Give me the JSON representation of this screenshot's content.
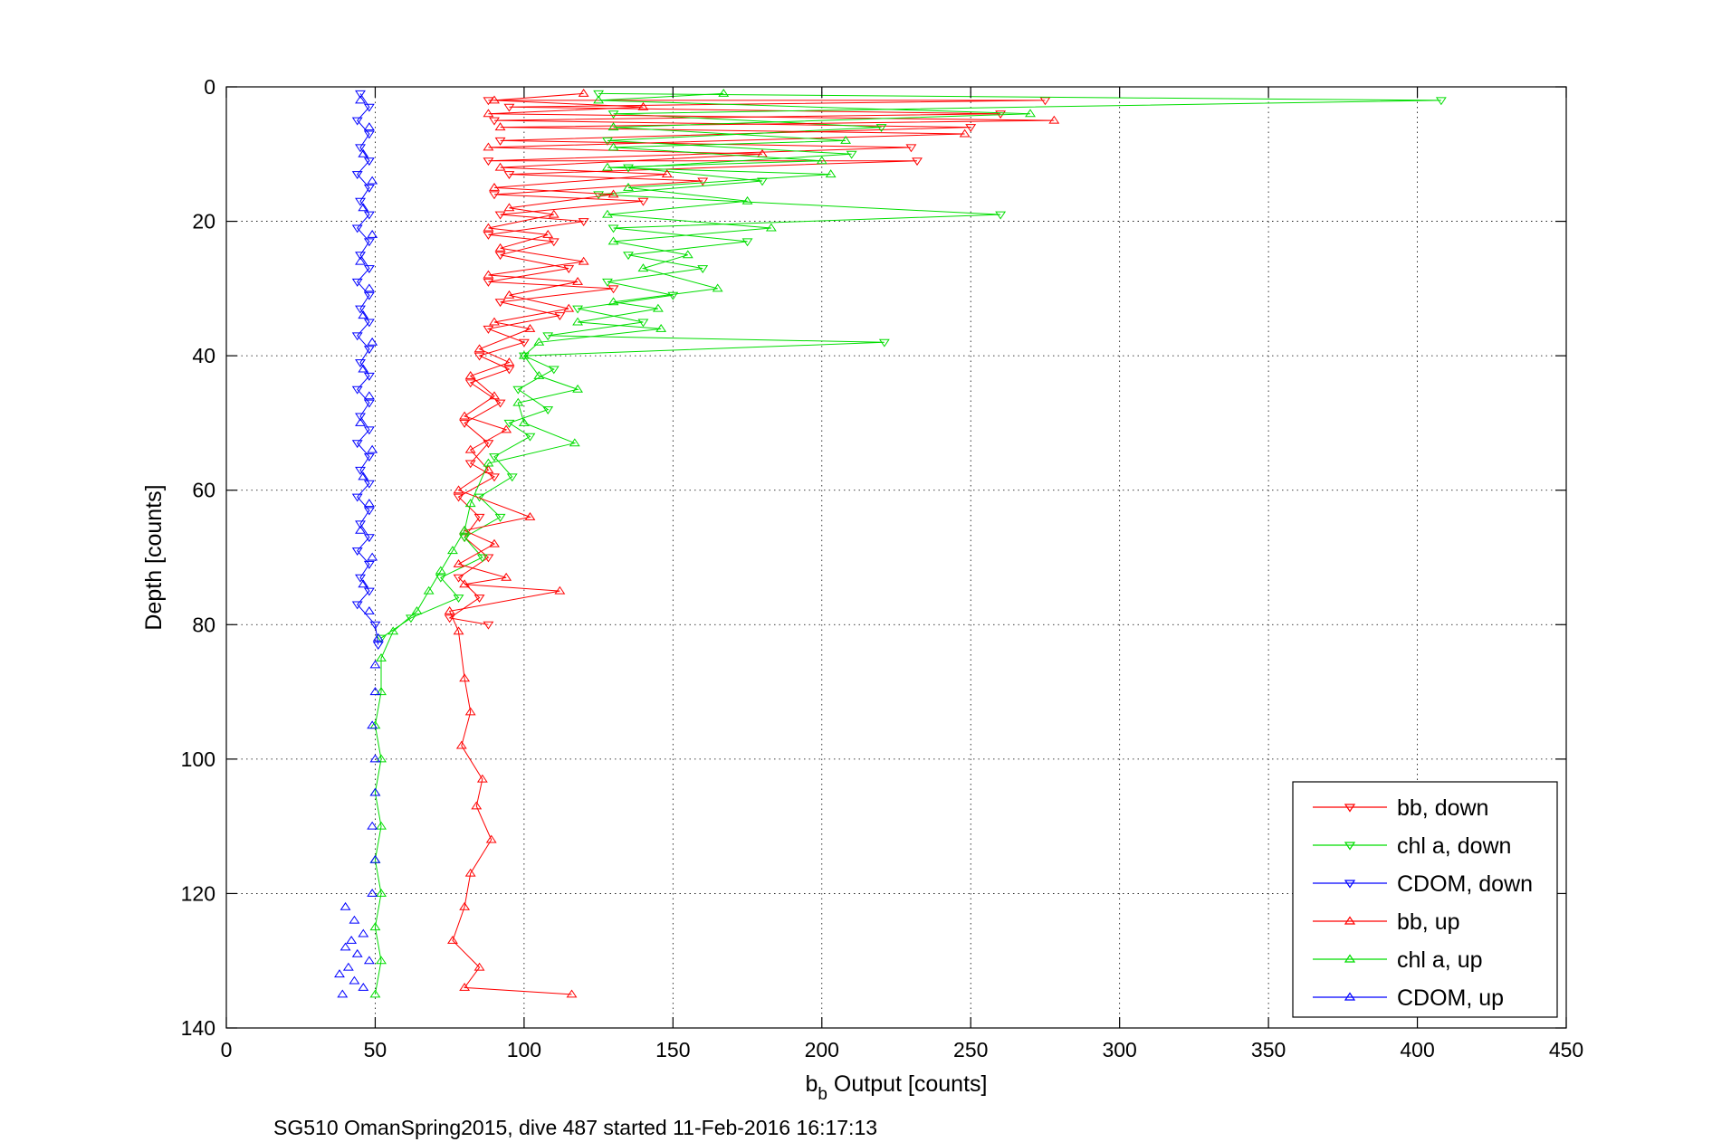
{
  "chart_data": {
    "type": "scatter",
    "title": "",
    "xlabel_main": "b",
    "xlabel_sub": "b",
    "xlabel_rest": " Output [counts]",
    "ylabel": "Depth [counts]",
    "footer": "SG510 OmanSpring2015, dive 487 started 11-Feb-2016 16:17:13",
    "xlim": [
      0,
      450
    ],
    "ylim": [
      0,
      140
    ],
    "y_reversed": true,
    "x_ticks": [
      0,
      50,
      100,
      150,
      200,
      250,
      300,
      350,
      400,
      450
    ],
    "y_ticks": [
      0,
      20,
      40,
      60,
      80,
      100,
      120,
      140
    ],
    "grid": true,
    "legend_position": "lower-right",
    "series": [
      {
        "name": "bb, down",
        "color": "#ff0000",
        "marker": "triangle-down",
        "line": true,
        "points": [
          [
            88,
            2
          ],
          [
            275,
            2
          ],
          [
            95,
            3
          ],
          [
            260,
            4
          ],
          [
            90,
            5
          ],
          [
            250,
            6
          ],
          [
            92,
            8
          ],
          [
            230,
            9
          ],
          [
            88,
            11
          ],
          [
            232,
            11
          ],
          [
            95,
            13
          ],
          [
            160,
            14
          ],
          [
            90,
            16
          ],
          [
            140,
            17
          ],
          [
            92,
            19
          ],
          [
            120,
            20
          ],
          [
            88,
            22
          ],
          [
            110,
            23
          ],
          [
            92,
            25
          ],
          [
            115,
            27
          ],
          [
            88,
            29
          ],
          [
            130,
            30
          ],
          [
            92,
            32
          ],
          [
            112,
            34
          ],
          [
            88,
            36
          ],
          [
            100,
            38
          ],
          [
            85,
            40
          ],
          [
            95,
            42
          ],
          [
            82,
            44
          ],
          [
            92,
            47
          ],
          [
            80,
            50
          ],
          [
            88,
            53
          ],
          [
            82,
            56
          ],
          [
            90,
            58
          ],
          [
            78,
            61
          ],
          [
            85,
            64
          ],
          [
            80,
            67
          ],
          [
            88,
            70
          ],
          [
            78,
            73
          ],
          [
            85,
            76
          ],
          [
            75,
            79
          ],
          [
            88,
            80
          ]
        ]
      },
      {
        "name": "chl a, down",
        "color": "#00dd00",
        "marker": "triangle-down",
        "line": true,
        "points": [
          [
            125,
            1
          ],
          [
            408,
            2
          ],
          [
            130,
            4
          ],
          [
            220,
            6
          ],
          [
            128,
            8
          ],
          [
            210,
            10
          ],
          [
            135,
            12
          ],
          [
            180,
            14
          ],
          [
            125,
            16
          ],
          [
            260,
            19
          ],
          [
            130,
            21
          ],
          [
            175,
            23
          ],
          [
            135,
            25
          ],
          [
            160,
            27
          ],
          [
            128,
            29
          ],
          [
            150,
            31
          ],
          [
            118,
            33
          ],
          [
            140,
            35
          ],
          [
            108,
            37
          ],
          [
            221,
            38
          ],
          [
            100,
            40
          ],
          [
            110,
            42
          ],
          [
            98,
            45
          ],
          [
            108,
            48
          ],
          [
            95,
            50
          ],
          [
            102,
            52
          ],
          [
            90,
            55
          ],
          [
            96,
            58
          ],
          [
            85,
            61
          ],
          [
            92,
            64
          ],
          [
            80,
            67
          ],
          [
            86,
            70
          ],
          [
            72,
            73
          ],
          [
            78,
            76
          ],
          [
            62,
            79
          ],
          [
            52,
            82
          ]
        ]
      },
      {
        "name": "CDOM, down",
        "color": "#0000ff",
        "marker": "triangle-down",
        "line": true,
        "points": [
          [
            45,
            1
          ],
          [
            48,
            3
          ],
          [
            44,
            5
          ],
          [
            48,
            7
          ],
          [
            45,
            9
          ],
          [
            48,
            11
          ],
          [
            44,
            13
          ],
          [
            48,
            15
          ],
          [
            45,
            17
          ],
          [
            48,
            19
          ],
          [
            44,
            21
          ],
          [
            48,
            23
          ],
          [
            45,
            25
          ],
          [
            48,
            27
          ],
          [
            44,
            29
          ],
          [
            48,
            31
          ],
          [
            45,
            33
          ],
          [
            48,
            35
          ],
          [
            44,
            37
          ],
          [
            48,
            39
          ],
          [
            45,
            41
          ],
          [
            48,
            43
          ],
          [
            44,
            45
          ],
          [
            48,
            47
          ],
          [
            45,
            49
          ],
          [
            48,
            51
          ],
          [
            44,
            53
          ],
          [
            48,
            55
          ],
          [
            45,
            57
          ],
          [
            48,
            59
          ],
          [
            44,
            61
          ],
          [
            48,
            63
          ],
          [
            45,
            65
          ],
          [
            48,
            67
          ],
          [
            44,
            69
          ],
          [
            48,
            71
          ],
          [
            45,
            73
          ],
          [
            48,
            75
          ],
          [
            44,
            77
          ],
          [
            50,
            80
          ],
          [
            51,
            83
          ]
        ]
      },
      {
        "name": "bb, up",
        "color": "#ff0000",
        "marker": "triangle-up",
        "line": true,
        "points": [
          [
            120,
            1
          ],
          [
            90,
            2
          ],
          [
            140,
            3
          ],
          [
            88,
            4
          ],
          [
            278,
            5
          ],
          [
            92,
            6
          ],
          [
            248,
            7
          ],
          [
            88,
            9
          ],
          [
            180,
            10
          ],
          [
            92,
            12
          ],
          [
            148,
            13
          ],
          [
            90,
            15
          ],
          [
            130,
            16
          ],
          [
            95,
            18
          ],
          [
            110,
            19
          ],
          [
            88,
            21
          ],
          [
            108,
            22
          ],
          [
            92,
            24
          ],
          [
            120,
            26
          ],
          [
            88,
            28
          ],
          [
            118,
            29
          ],
          [
            95,
            31
          ],
          [
            115,
            33
          ],
          [
            90,
            35
          ],
          [
            102,
            36
          ],
          [
            85,
            39
          ],
          [
            95,
            41
          ],
          [
            82,
            43
          ],
          [
            90,
            46
          ],
          [
            80,
            49
          ],
          [
            94,
            51
          ],
          [
            82,
            54
          ],
          [
            88,
            57
          ],
          [
            78,
            60
          ],
          [
            102,
            64
          ],
          [
            80,
            66
          ],
          [
            90,
            68
          ],
          [
            78,
            71
          ],
          [
            94,
            73
          ],
          [
            80,
            74
          ],
          [
            112,
            75
          ],
          [
            75,
            78
          ],
          [
            78,
            81
          ],
          [
            80,
            88
          ],
          [
            82,
            93
          ],
          [
            79,
            98
          ],
          [
            86,
            103
          ],
          [
            84,
            107
          ],
          [
            89,
            112
          ],
          [
            82,
            117
          ],
          [
            80,
            122
          ],
          [
            76,
            127
          ],
          [
            85,
            131
          ],
          [
            80,
            134
          ],
          [
            116,
            135
          ]
        ]
      },
      {
        "name": "chl a, up",
        "color": "#00dd00",
        "marker": "triangle-up",
        "line": true,
        "points": [
          [
            167,
            1
          ],
          [
            125,
            2
          ],
          [
            270,
            4
          ],
          [
            130,
            6
          ],
          [
            208,
            8
          ],
          [
            130,
            9
          ],
          [
            200,
            11
          ],
          [
            128,
            12
          ],
          [
            203,
            13
          ],
          [
            135,
            15
          ],
          [
            175,
            17
          ],
          [
            128,
            19
          ],
          [
            183,
            21
          ],
          [
            130,
            23
          ],
          [
            155,
            25
          ],
          [
            140,
            27
          ],
          [
            165,
            30
          ],
          [
            130,
            32
          ],
          [
            145,
            33
          ],
          [
            118,
            35
          ],
          [
            146,
            36
          ],
          [
            105,
            38
          ],
          [
            100,
            40
          ],
          [
            105,
            43
          ],
          [
            118,
            45
          ],
          [
            98,
            47
          ],
          [
            100,
            50
          ],
          [
            117,
            53
          ],
          [
            88,
            56
          ],
          [
            82,
            62
          ],
          [
            80,
            66
          ],
          [
            76,
            69
          ],
          [
            72,
            72
          ],
          [
            68,
            75
          ],
          [
            64,
            78
          ],
          [
            56,
            81
          ],
          [
            52,
            85
          ],
          [
            52,
            90
          ],
          [
            50,
            95
          ],
          [
            52,
            100
          ],
          [
            50,
            105
          ],
          [
            52,
            110
          ],
          [
            50,
            115
          ],
          [
            52,
            120
          ],
          [
            50,
            125
          ],
          [
            52,
            130
          ],
          [
            50,
            135
          ]
        ]
      },
      {
        "name": "CDOM, up",
        "color": "#0000ff",
        "marker": "triangle-up",
        "line": false,
        "points": [
          [
            45,
            2
          ],
          [
            48,
            6
          ],
          [
            46,
            10
          ],
          [
            49,
            14
          ],
          [
            46,
            18
          ],
          [
            49,
            22
          ],
          [
            45,
            26
          ],
          [
            48,
            30
          ],
          [
            46,
            34
          ],
          [
            49,
            38
          ],
          [
            46,
            42
          ],
          [
            48,
            46
          ],
          [
            45,
            50
          ],
          [
            49,
            54
          ],
          [
            46,
            58
          ],
          [
            48,
            62
          ],
          [
            45,
            66
          ],
          [
            49,
            70
          ],
          [
            46,
            74
          ],
          [
            48,
            78
          ],
          [
            51,
            82
          ],
          [
            50,
            86
          ],
          [
            50,
            90
          ],
          [
            49,
            95
          ],
          [
            50,
            100
          ],
          [
            50,
            105
          ],
          [
            49,
            110
          ],
          [
            50,
            115
          ],
          [
            49,
            120
          ],
          [
            40,
            122
          ],
          [
            43,
            124
          ],
          [
            46,
            126
          ],
          [
            42,
            127
          ],
          [
            40,
            128
          ],
          [
            44,
            129
          ],
          [
            48,
            130
          ],
          [
            41,
            131
          ],
          [
            38,
            132
          ],
          [
            43,
            133
          ],
          [
            46,
            134
          ],
          [
            39,
            135
          ]
        ]
      }
    ]
  }
}
